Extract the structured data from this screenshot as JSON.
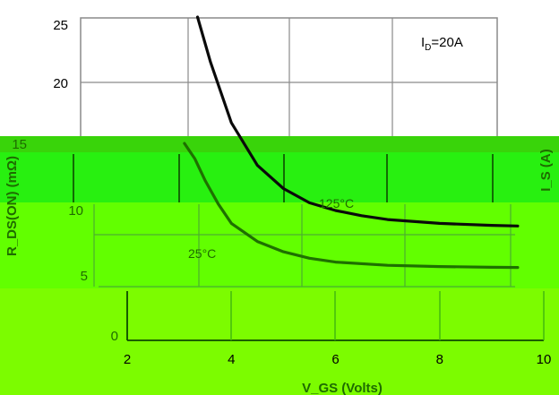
{
  "chart_data": {
    "type": "line",
    "title": "",
    "xlabel": "V_GS (Volts)",
    "ylabel": "R_DS(ON) (mΩ)",
    "right_ylabel": "I_S (A)",
    "xlim": [
      2,
      10
    ],
    "ylim": [
      0,
      25
    ],
    "xticks": [
      2,
      4,
      6,
      8,
      10
    ],
    "yticks": [
      0,
      5,
      10,
      15,
      20,
      25
    ],
    "grid": true,
    "annotation": {
      "prefix": "I",
      "subscript": "D",
      "suffix": "=20A"
    },
    "series": [
      {
        "name": "125°C",
        "color": "#0a0a0a",
        "points": [
          [
            3.35,
            25
          ],
          [
            3.6,
            21.5
          ],
          [
            4.0,
            16.8
          ],
          [
            4.5,
            13.5
          ],
          [
            5.0,
            11.7
          ],
          [
            5.5,
            10.6
          ],
          [
            6.0,
            10.0
          ],
          [
            6.5,
            9.6
          ],
          [
            7.0,
            9.3
          ],
          [
            8.0,
            9.0
          ],
          [
            9.0,
            8.85
          ],
          [
            9.5,
            8.8
          ]
        ]
      },
      {
        "name": "25°C",
        "color": "#1e7000",
        "points": [
          [
            3.1,
            15.2
          ],
          [
            3.3,
            14.0
          ],
          [
            3.5,
            12.3
          ],
          [
            3.75,
            10.5
          ],
          [
            4.0,
            9.0
          ],
          [
            4.5,
            7.6
          ],
          [
            5.0,
            6.8
          ],
          [
            5.5,
            6.3
          ],
          [
            6.0,
            6.0
          ],
          [
            7.0,
            5.75
          ],
          [
            8.0,
            5.65
          ],
          [
            9.0,
            5.6
          ],
          [
            9.5,
            5.58
          ]
        ]
      }
    ]
  }
}
